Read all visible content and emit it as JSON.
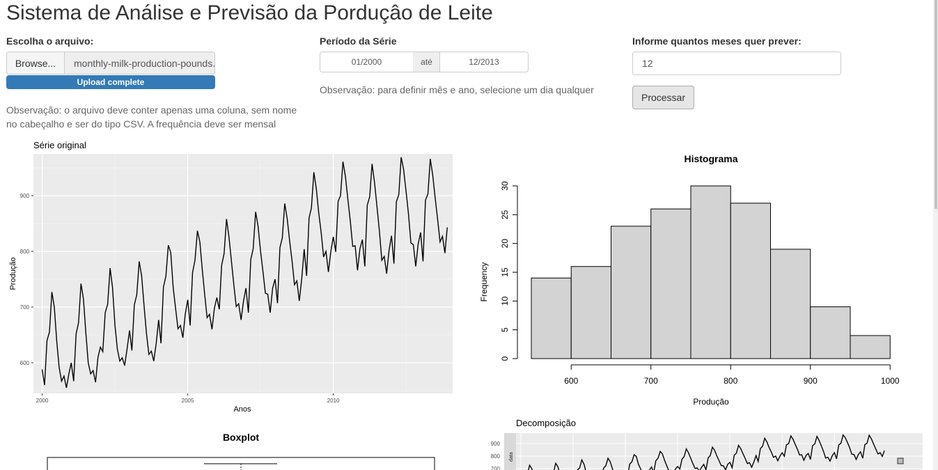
{
  "page": {
    "title": "Sistema de Análise e Previsão da Porduçâo de Leite"
  },
  "file": {
    "label": "Escolha o arquivo:",
    "browse_label": "Browse...",
    "filename": "monthly-milk-production-pounds.csv",
    "progress_text": "Upload complete",
    "note_line1": "Observação: o arquivo deve conter apenas uma coluna, sem nome",
    "note_line2": "no cabeçalho e ser do tipo CSV. A frequência deve ser mensal"
  },
  "period": {
    "label": "Período da Série",
    "start": "01/2000",
    "separator": "até",
    "end": "12/2013",
    "note": "Observação: para definir mês e ano, selecione um dia qualquer"
  },
  "forecast": {
    "label": "Informe quantos meses quer prever:",
    "value": "12",
    "button_label": "Processar"
  },
  "colors": {
    "plot_panel": "#ebebeb",
    "bar_fill": "#d3d3d3",
    "progress": "#337ab7"
  },
  "chart_data": [
    {
      "type": "line",
      "title": "Série original",
      "xlabel": "Anos",
      "ylabel": "Produção",
      "x_ticks": [
        "2000",
        "2005",
        "2010"
      ],
      "y_ticks": [
        "600",
        "700",
        "800",
        "900"
      ],
      "xlim": [
        1999.7,
        2014.1
      ],
      "ylim": [
        545,
        975
      ],
      "grid": true,
      "start": 2000,
      "yearly_values": [
        [
          588,
          560,
          640,
          655,
          727,
          700,
          640,
          592,
          567,
          576,
          555,
          580
        ],
        [
          600,
          567,
          652,
          672,
          742,
          715,
          655,
          600,
          580,
          586,
          565,
          610
        ],
        [
          628,
          620,
          690,
          705,
          770,
          735,
          667,
          625,
          603,
          609,
          595,
          625
        ],
        [
          658,
          622,
          704,
          722,
          782,
          756,
          702,
          653,
          615,
          621,
          603,
          635
        ],
        [
          677,
          635,
          736,
          755,
          811,
          798,
          735,
          697,
          661,
          667,
          645,
          688
        ],
        [
          713,
          667,
          762,
          784,
          837,
          817,
          767,
          722,
          681,
          687,
          660,
          698
        ],
        [
          717,
          696,
          775,
          796,
          858,
          826,
          783,
          740,
          701,
          706,
          677,
          711
        ],
        [
          734,
          690,
          785,
          805,
          871,
          845,
          801,
          764,
          725,
          723,
          690,
          734
        ],
        [
          750,
          707,
          807,
          824,
          886,
          859,
          819,
          783,
          740,
          747,
          711,
          751
        ],
        [
          804,
          756,
          860,
          878,
          942,
          913,
          869,
          834,
          790,
          800,
          763,
          800
        ],
        [
          826,
          799,
          890,
          900,
          961,
          935,
          894,
          855,
          809,
          810,
          766,
          805
        ],
        [
          821,
          773,
          883,
          898,
          957,
          924,
          881,
          837,
          784,
          791,
          760,
          802
        ],
        [
          828,
          778,
          889,
          902,
          969,
          947,
          908,
          867,
          815,
          812,
          773,
          813
        ],
        [
          834,
          782,
          892,
          903,
          966,
          937,
          896,
          858,
          817,
          827,
          797,
          843
        ]
      ]
    },
    {
      "type": "bar",
      "title": "Histograma",
      "xlabel": "Produção",
      "ylabel": "Frequency",
      "bin_edges": [
        550,
        600,
        650,
        700,
        750,
        800,
        850,
        900,
        950,
        1000
      ],
      "values": [
        14,
        16,
        23,
        26,
        30,
        27,
        19,
        9,
        4
      ],
      "x_ticks": [
        "600",
        "700",
        "800",
        "900",
        "1000"
      ],
      "y_ticks": [
        "0",
        "5",
        "10",
        "15",
        "20",
        "25",
        "30"
      ],
      "ylim": [
        0,
        30
      ]
    },
    {
      "type": "box",
      "title": "Boxplot"
    },
    {
      "type": "line",
      "title": "Decomposição",
      "panel_label": "data",
      "y_ticks": [
        "900",
        "800",
        "700"
      ]
    }
  ]
}
